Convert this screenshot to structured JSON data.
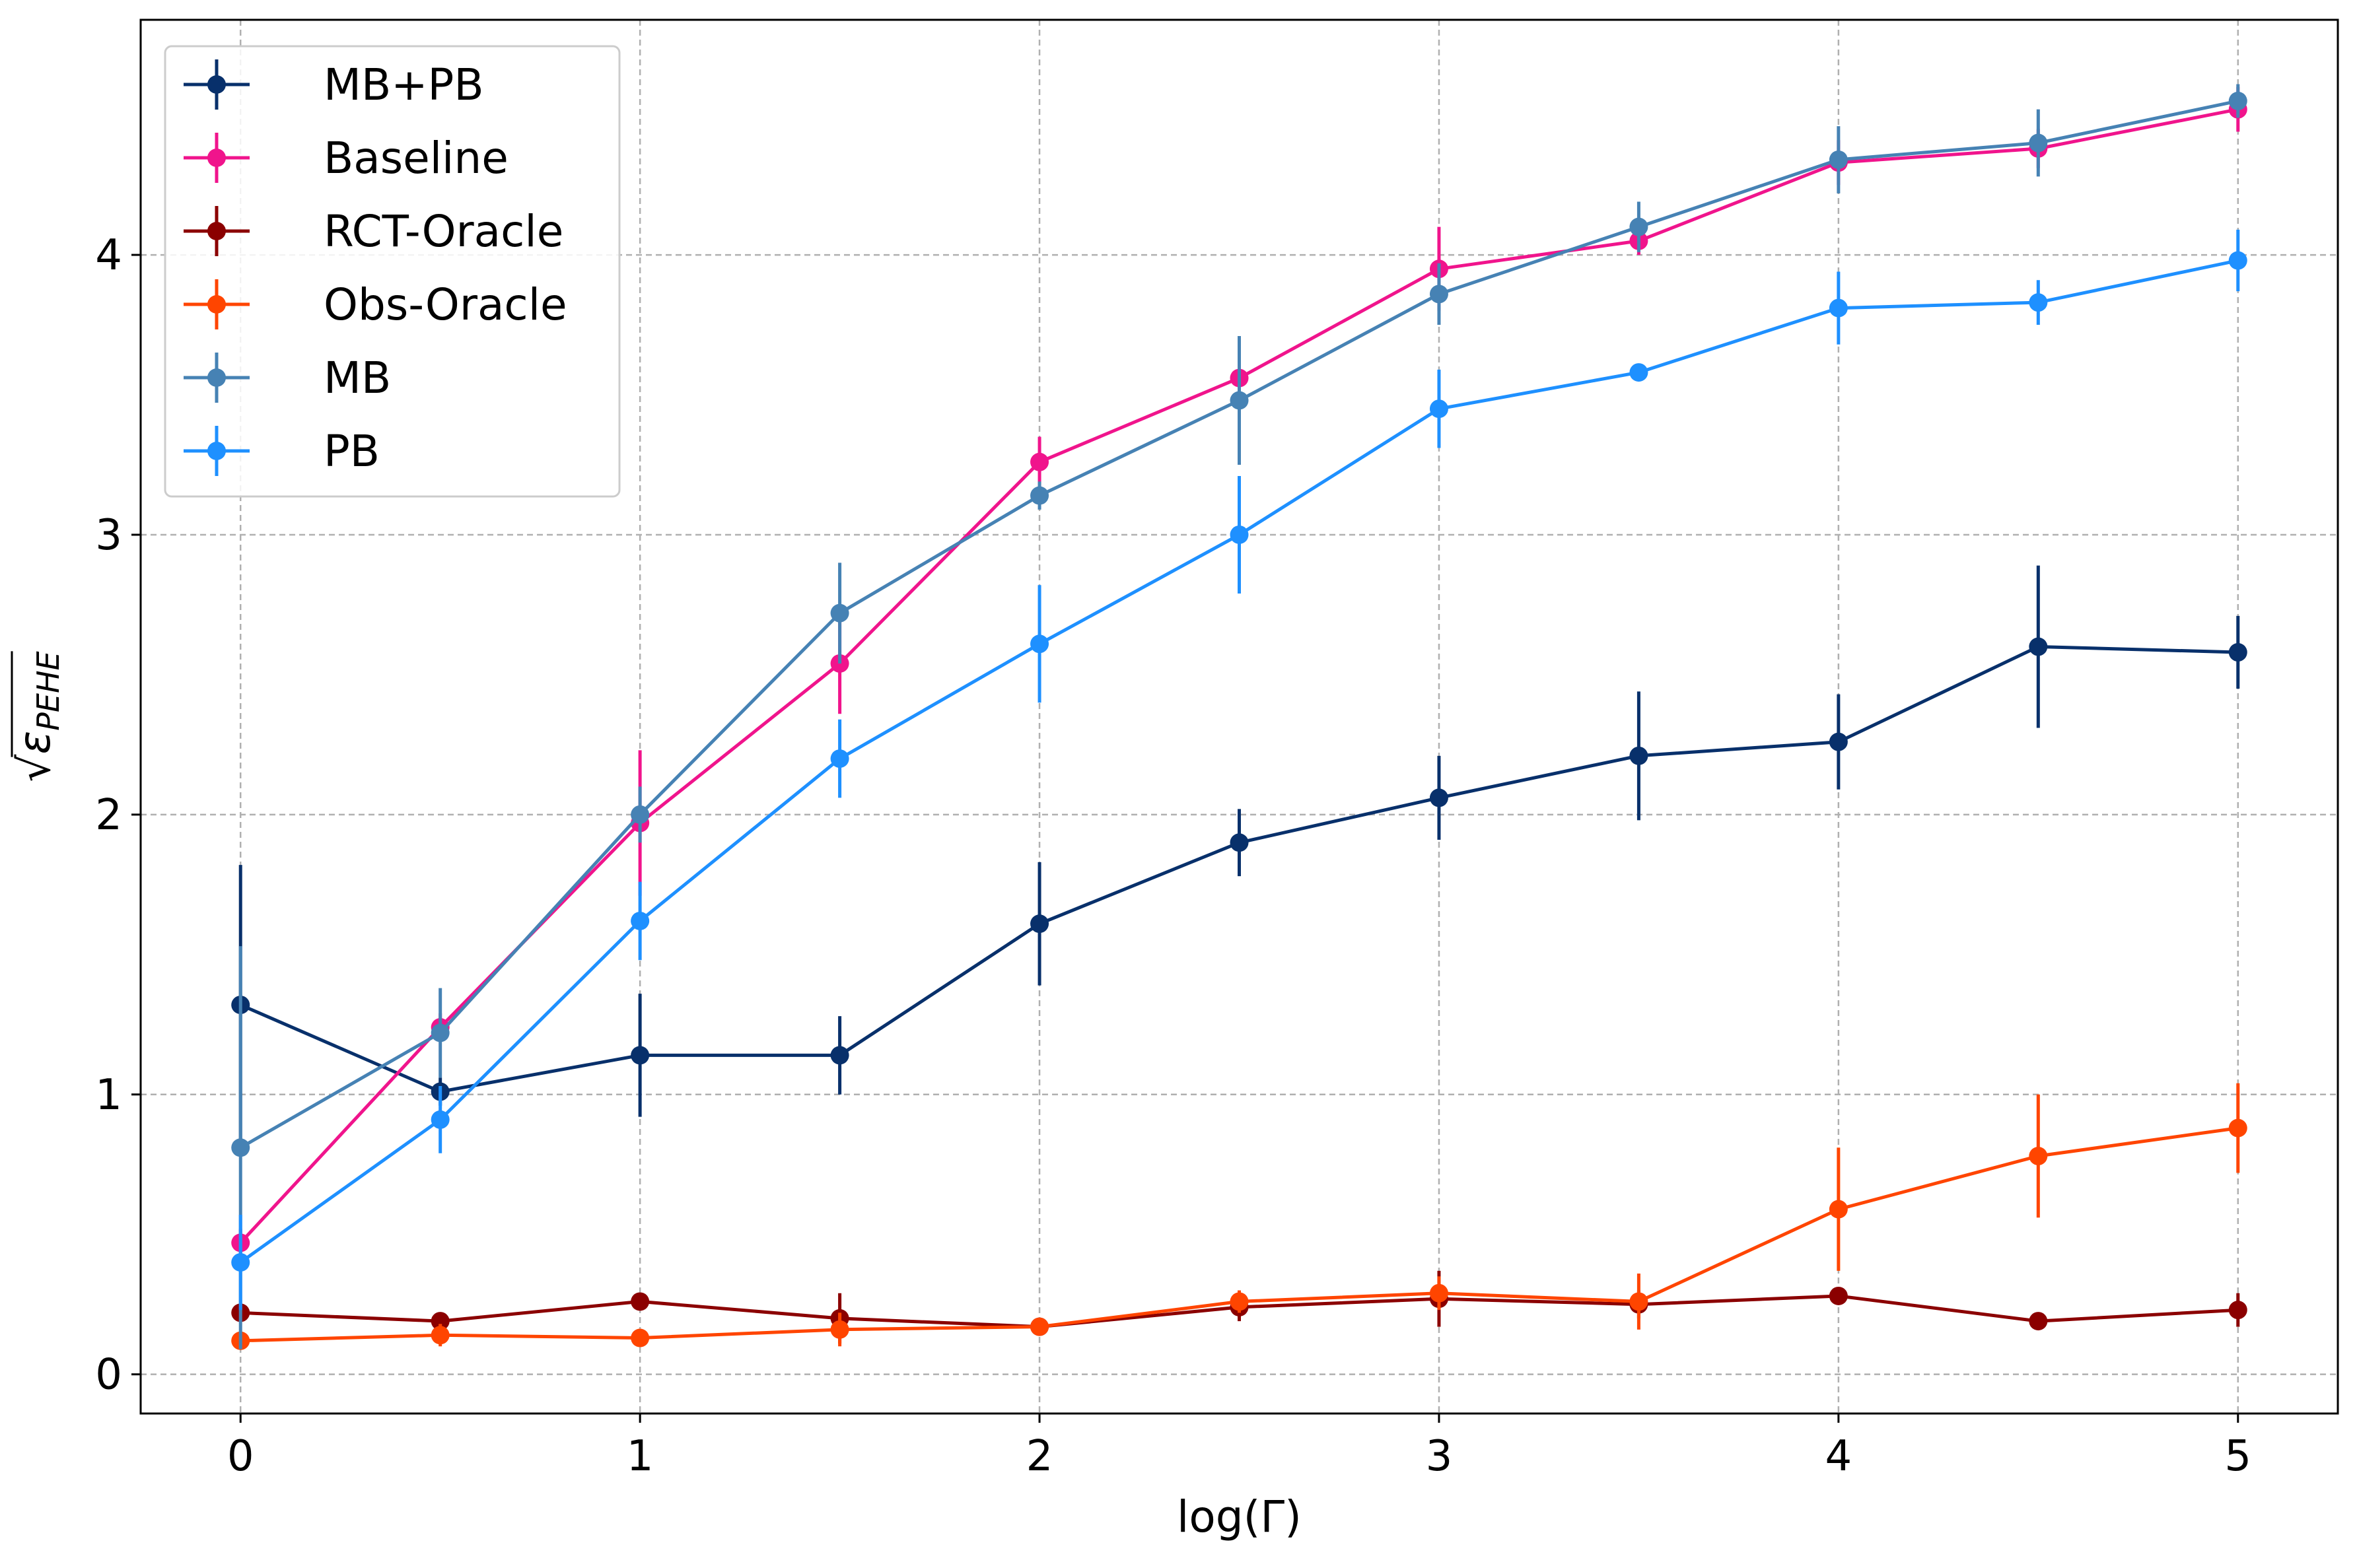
{
  "chart_data": {
    "type": "line",
    "title": "",
    "xlabel": "log(Γ)",
    "ylabel": "√ε_PEHE",
    "ylabel_prefix": "√",
    "ylabel_symbol": "ε",
    "ylabel_subscript": "PEHE",
    "x": [
      0,
      0.5,
      1,
      1.5,
      2,
      2.5,
      3,
      3.5,
      4,
      4.5,
      5
    ],
    "xlim": [
      -0.25,
      5.25
    ],
    "ylim": [
      -0.14,
      4.84
    ],
    "xticks": [
      0,
      1,
      2,
      3,
      4,
      5
    ],
    "xtick_labels": [
      "0",
      "1",
      "2",
      "3",
      "4",
      "5"
    ],
    "yticks": [
      0,
      1,
      2,
      3,
      4
    ],
    "ytick_labels": [
      "0",
      "1",
      "2",
      "3",
      "4"
    ],
    "grid": true,
    "legend_position": "top-left",
    "series": [
      {
        "name": "MB+PB",
        "color": "#08306b",
        "values": [
          1.32,
          1.01,
          1.14,
          1.14,
          1.61,
          1.9,
          2.06,
          2.21,
          2.26,
          2.6,
          2.58
        ],
        "errors": [
          0.5,
          0.05,
          0.22,
          0.14,
          0.22,
          0.12,
          0.15,
          0.23,
          0.17,
          0.29,
          0.13
        ]
      },
      {
        "name": "Baseline",
        "color": "#f0148c",
        "values": [
          0.47,
          1.24,
          1.97,
          2.54,
          3.26,
          3.56,
          3.95,
          4.05,
          4.33,
          4.38,
          4.52
        ],
        "errors": [
          0.05,
          0.05,
          0.26,
          0.18,
          0.09,
          0.05,
          0.15,
          0.05,
          0.08,
          0.07,
          0.08
        ]
      },
      {
        "name": "RCT-Oracle",
        "color": "#8b0000",
        "values": [
          0.22,
          0.19,
          0.26,
          0.2,
          0.17,
          0.24,
          0.27,
          0.25,
          0.28,
          0.19,
          0.23
        ],
        "errors": [
          0.03,
          0.03,
          0.02,
          0.09,
          0.02,
          0.05,
          0.1,
          0.05,
          0.02,
          0.03,
          0.06
        ]
      },
      {
        "name": "Obs-Oracle",
        "color": "#ff4500",
        "values": [
          0.12,
          0.14,
          0.13,
          0.16,
          0.17,
          0.26,
          0.29,
          0.26,
          0.59,
          0.78,
          0.88
        ],
        "errors": [
          0.02,
          0.04,
          0.02,
          0.06,
          0.02,
          0.04,
          0.06,
          0.1,
          0.22,
          0.22,
          0.16
        ]
      },
      {
        "name": "MB",
        "color": "#4682b4",
        "values": [
          0.81,
          1.22,
          2.0,
          2.72,
          3.14,
          3.48,
          3.86,
          4.1,
          4.34,
          4.4,
          4.55
        ],
        "errors": [
          0.72,
          0.16,
          0.1,
          0.18,
          0.05,
          0.23,
          0.11,
          0.09,
          0.12,
          0.12,
          0.06
        ]
      },
      {
        "name": "PB",
        "color": "#1e90ff",
        "values": [
          0.4,
          0.91,
          1.62,
          2.2,
          2.61,
          3.0,
          3.45,
          3.58,
          3.81,
          3.83,
          3.98
        ],
        "errors": [
          0.17,
          0.12,
          0.14,
          0.14,
          0.21,
          0.21,
          0.14,
          0.02,
          0.13,
          0.08,
          0.11
        ]
      }
    ]
  }
}
